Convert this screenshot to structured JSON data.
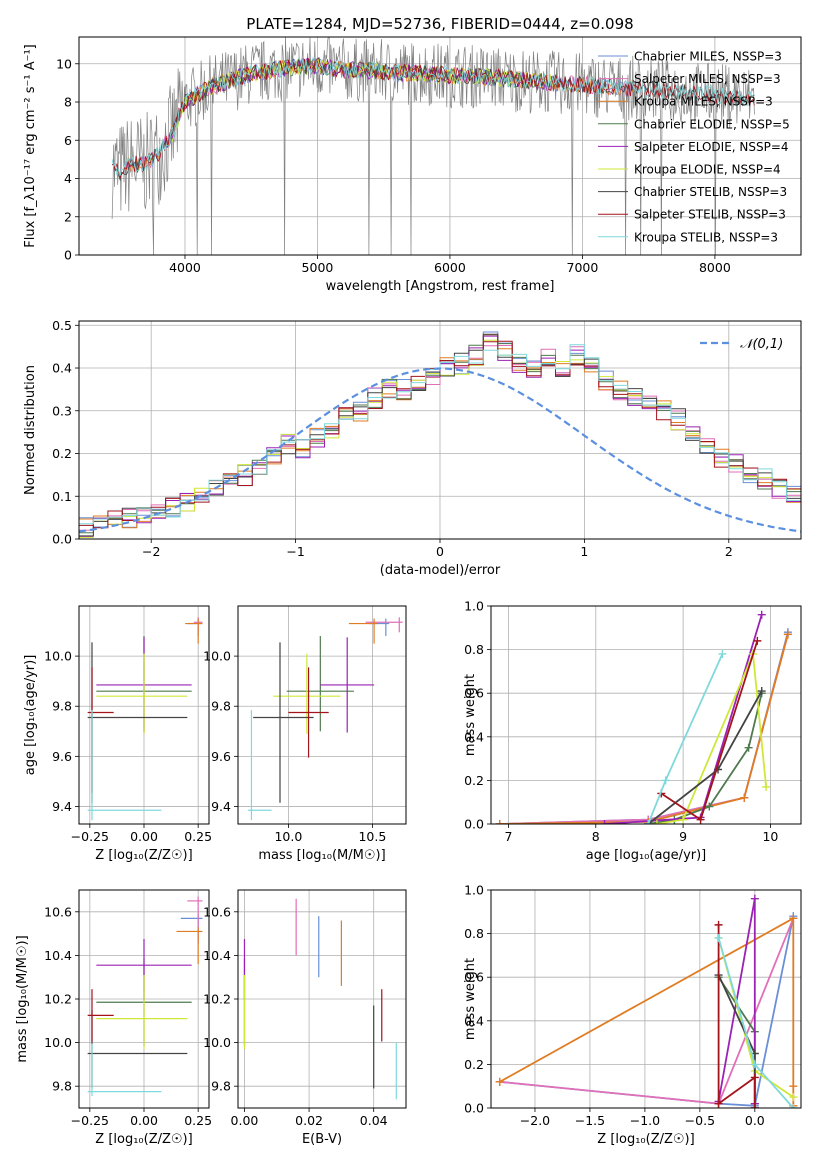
{
  "title": "PLATE=1284, MJD=52736, FIBERID=0444, z=0.098",
  "colors": {
    "Chabrier MILES": "#6a8fd6",
    "Salpeter MILES": "#e26fb8",
    "Kroupa MILES": "#e07c22",
    "Chabrier ELODIE": "#4f7a4f",
    "Salpeter ELODIE": "#9b22b4",
    "Kroupa ELODIE": "#cfe838",
    "Chabrier STELIB": "#444444",
    "Salpeter STELIB": "#a3141c",
    "Kroupa STELIB": "#7fd9dc"
  },
  "chart_data": [
    {
      "type": "line",
      "title": "PLATE=1284, MJD=52736, FIBERID=0444, z=0.098",
      "xlabel": "wavelength [Angstrom, rest frame]",
      "ylabel": "Flux [f_λ10⁻¹⁷ erg cm⁻² s⁻¹ A⁻¹]",
      "xlim": [
        3200,
        8650
      ],
      "ylim": [
        0,
        11.4
      ],
      "xticks": [
        4000,
        5000,
        6000,
        7000,
        8000
      ],
      "yticks": [
        0,
        2,
        4,
        6,
        8,
        10
      ],
      "legend_position": "top-right",
      "data_color": "#808080",
      "series": [
        {
          "name": "Chabrier MILES, N_SSP=3",
          "wave_range": [
            3550,
            7400
          ]
        },
        {
          "name": "Salpeter MILES, N_SSP=3",
          "wave_range": [
            3550,
            7400
          ]
        },
        {
          "name": "Kroupa MILES, N_SSP=3",
          "wave_range": [
            3550,
            7400
          ]
        },
        {
          "name": "Chabrier ELODIE, N_SSP=5",
          "wave_range": [
            3900,
            6800
          ]
        },
        {
          "name": "Salpeter ELODIE, N_SSP=4",
          "wave_range": [
            3900,
            6800
          ]
        },
        {
          "name": "Kroupa ELODIE, N_SSP=4",
          "wave_range": [
            3900,
            6800
          ]
        },
        {
          "name": "Chabrier STELIB, N_SSP=3",
          "wave_range": [
            3450,
            8300
          ]
        },
        {
          "name": "Salpeter STELIB, N_SSP=3",
          "wave_range": [
            3450,
            8300
          ]
        },
        {
          "name": "Kroupa STELIB, N_SSP=3",
          "wave_range": [
            3450,
            8300
          ]
        }
      ],
      "continuum": {
        "x": [
          3450,
          3500,
          3600,
          3700,
          3800,
          3900,
          4000,
          4200,
          4500,
          4800,
          5000,
          5200,
          5500,
          5800,
          6000,
          6300,
          6600,
          7000,
          7400,
          7800,
          8300
        ],
        "y": [
          4.6,
          4.3,
          4.8,
          4.7,
          5.3,
          6.3,
          8.0,
          8.8,
          9.5,
          9.8,
          9.9,
          9.7,
          9.6,
          9.5,
          9.4,
          9.3,
          9.1,
          8.9,
          8.7,
          8.5,
          8.2
        ]
      }
    },
    {
      "type": "line",
      "xlabel": "(data-model)/error",
      "ylabel": "Normed distribution",
      "xlim": [
        -2.5,
        2.5
      ],
      "ylim": [
        0,
        0.51
      ],
      "xticks": [
        -2,
        -1,
        0,
        1,
        2
      ],
      "yticks": [
        0.0,
        0.1,
        0.2,
        0.3,
        0.4,
        0.5
      ],
      "legend": [
        "𝒩(0,1)"
      ],
      "legend_position": "top-right",
      "bin_width": 0.1,
      "histogram_x_start": -2.5,
      "histogram": [
        0.025,
        0.04,
        0.045,
        0.048,
        0.052,
        0.065,
        0.075,
        0.085,
        0.105,
        0.12,
        0.13,
        0.15,
        0.175,
        0.2,
        0.22,
        0.21,
        0.24,
        0.25,
        0.29,
        0.3,
        0.33,
        0.35,
        0.35,
        0.37,
        0.38,
        0.4,
        0.41,
        0.43,
        0.46,
        0.44,
        0.41,
        0.4,
        0.42,
        0.4,
        0.43,
        0.41,
        0.37,
        0.35,
        0.33,
        0.31,
        0.3,
        0.28,
        0.25,
        0.22,
        0.19,
        0.18,
        0.15,
        0.14,
        0.12,
        0.1,
        0.085,
        0.07,
        0.06,
        0.05,
        0.045,
        0.04,
        0.035,
        0.03,
        0.03,
        0.028
      ]
    },
    {
      "type": "scatter",
      "xlabel": "Z [log₁₀(Z/Z☉)]",
      "ylabel": "age  [log₁₀(age/yr)]",
      "xlim": [
        -0.3,
        0.3
      ],
      "ylim": [
        9.33,
        10.2
      ],
      "xticks": [
        -0.25,
        0.0,
        0.25
      ],
      "yticks": [
        9.4,
        9.6,
        9.8,
        10.0
      ],
      "points": [
        {
          "x": 0.25,
          "y": 10.13,
          "xerr": [
            0.05,
            0.02
          ],
          "yerr": [
            0.05,
            0.02
          ]
        },
        {
          "x": 0.25,
          "y": 10.135,
          "xerr": [
            0.02,
            0.02
          ],
          "yerr": [
            0.04,
            0.02
          ]
        },
        {
          "x": 0.25,
          "y": 10.13,
          "xerr": [
            0.06,
            0.02
          ],
          "yerr": [
            0.08,
            0.02
          ]
        },
        {
          "x": 0.0,
          "y": 9.86,
          "xerr": [
            0.22,
            0.22
          ],
          "yerr": [
            0.16,
            0.22
          ]
        },
        {
          "x": 0.0,
          "y": 9.885,
          "xerr": [
            0.22,
            0.22
          ],
          "yerr": [
            0.19,
            0.19
          ]
        },
        {
          "x": 0.0,
          "y": 9.84,
          "xerr": [
            0.22,
            0.2
          ],
          "yerr": [
            0.15,
            0.17
          ]
        },
        {
          "x": -0.24,
          "y": 9.755,
          "xerr": [
            0.02,
            0.44
          ],
          "yerr": [
            0.34,
            0.3
          ]
        },
        {
          "x": -0.24,
          "y": 9.775,
          "xerr": [
            0.02,
            0.1
          ],
          "yerr": [
            0.32,
            0.18
          ]
        },
        {
          "x": -0.24,
          "y": 9.385,
          "xerr": [
            0.02,
            0.32
          ],
          "yerr": [
            0.04,
            0.4
          ]
        }
      ]
    },
    {
      "type": "scatter",
      "xlabel": "mass [log₁₀(M/M☉)]",
      "ylabel": "",
      "xlim": [
        9.7,
        10.7
      ],
      "ylim": [
        9.33,
        10.2
      ],
      "xticks": [
        10.0,
        10.5
      ],
      "yticks": [
        9.4,
        9.6,
        9.8,
        10.0
      ],
      "points": [
        {
          "x": 10.58,
          "y": 10.13,
          "xerr": [
            0.1,
            0.02
          ],
          "yerr": [
            0.05,
            0.02
          ]
        },
        {
          "x": 10.66,
          "y": 10.135,
          "xerr": [
            0.2,
            0.02
          ],
          "yerr": [
            0.04,
            0.02
          ]
        },
        {
          "x": 10.51,
          "y": 10.13,
          "xerr": [
            0.15,
            0.02
          ],
          "yerr": [
            0.08,
            0.02
          ]
        },
        {
          "x": 10.19,
          "y": 9.86,
          "xerr": [
            0.2,
            0.2
          ],
          "yerr": [
            0.16,
            0.22
          ]
        },
        {
          "x": 10.35,
          "y": 9.885,
          "xerr": [
            0.16,
            0.16
          ],
          "yerr": [
            0.19,
            0.19
          ]
        },
        {
          "x": 10.11,
          "y": 9.84,
          "xerr": [
            0.2,
            0.2
          ],
          "yerr": [
            0.15,
            0.17
          ]
        },
        {
          "x": 9.95,
          "y": 9.755,
          "xerr": [
            0.16,
            0.2
          ],
          "yerr": [
            0.34,
            0.3
          ]
        },
        {
          "x": 10.12,
          "y": 9.775,
          "xerr": [
            0.12,
            0.12
          ],
          "yerr": [
            0.18,
            0.18
          ]
        },
        {
          "x": 9.78,
          "y": 9.385,
          "xerr": [
            0.02,
            0.12
          ],
          "yerr": [
            0.04,
            0.4
          ]
        }
      ]
    },
    {
      "type": "line",
      "xlabel": "age  [log₁₀(age/yr)]",
      "ylabel": "mass weight",
      "xlim": [
        6.8,
        10.35
      ],
      "ylim": [
        0,
        1.0
      ],
      "xticks": [
        7,
        8,
        9,
        10
      ],
      "yticks": [
        0.0,
        0.2,
        0.4,
        0.6,
        0.8,
        1.0
      ],
      "series": [
        {
          "name": "Chabrier MILES",
          "x": [
            6.9,
            8.6,
            9.7,
            10.2
          ],
          "y": [
            0.0,
            0.02,
            0.12,
            0.88
          ]
        },
        {
          "name": "Salpeter MILES",
          "x": [
            6.9,
            8.6,
            9.7,
            10.2
          ],
          "y": [
            0.0,
            0.02,
            0.12,
            0.87
          ]
        },
        {
          "name": "Kroupa MILES",
          "x": [
            6.9,
            8.6,
            9.7,
            10.2
          ],
          "y": [
            0.0,
            0.01,
            0.12,
            0.87
          ]
        },
        {
          "name": "Chabrier ELODIE",
          "x": [
            8.6,
            8.9,
            9.3,
            9.75,
            9.9
          ],
          "y": [
            0.0,
            0.02,
            0.08,
            0.35,
            0.6
          ]
        },
        {
          "name": "Salpeter ELODIE",
          "x": [
            8.1,
            9.2,
            9.9
          ],
          "y": [
            0.0,
            0.03,
            0.96
          ]
        },
        {
          "name": "Kroupa ELODIE",
          "x": [
            8.7,
            9.0,
            9.8,
            9.95
          ],
          "y": [
            0.0,
            0.02,
            0.78,
            0.17
          ]
        },
        {
          "name": "Chabrier STELIB",
          "x": [
            8.6,
            9.4,
            9.9
          ],
          "y": [
            0.0,
            0.25,
            0.61
          ]
        },
        {
          "name": "Salpeter STELIB",
          "x": [
            8.75,
            9.2,
            9.85
          ],
          "y": [
            0.14,
            0.02,
            0.84
          ]
        },
        {
          "name": "Kroupa STELIB",
          "x": [
            8.6,
            8.8,
            9.45
          ],
          "y": [
            0.0,
            0.2,
            0.78
          ]
        }
      ]
    },
    {
      "type": "scatter",
      "xlabel": "Z [log₁₀(Z/Z☉)]",
      "ylabel": "mass [log₁₀(M/M☉)]",
      "xlim": [
        -0.3,
        0.3
      ],
      "ylim": [
        9.7,
        10.7
      ],
      "xticks": [
        -0.25,
        0.0,
        0.25
      ],
      "yticks": [
        9.8,
        10.0,
        10.2,
        10.4,
        10.6
      ],
      "points": [
        {
          "x": 0.25,
          "y": 10.57,
          "xerr": [
            0.08,
            0.02
          ],
          "yerr": [
            0.1,
            0.02
          ]
        },
        {
          "x": 0.25,
          "y": 10.65,
          "xerr": [
            0.05,
            0.02
          ],
          "yerr": [
            0.2,
            0.02
          ]
        },
        {
          "x": 0.25,
          "y": 10.51,
          "xerr": [
            0.1,
            0.02
          ],
          "yerr": [
            0.15,
            0.02
          ]
        },
        {
          "x": 0.0,
          "y": 10.185,
          "xerr": [
            0.22,
            0.22
          ],
          "yerr": [
            0.2,
            0.2
          ]
        },
        {
          "x": 0.0,
          "y": 10.355,
          "xerr": [
            0.22,
            0.22
          ],
          "yerr": [
            0.16,
            0.12
          ]
        },
        {
          "x": 0.0,
          "y": 10.11,
          "xerr": [
            0.22,
            0.2
          ],
          "yerr": [
            0.14,
            0.2
          ]
        },
        {
          "x": -0.24,
          "y": 9.95,
          "xerr": [
            0.02,
            0.44
          ],
          "yerr": [
            0.16,
            0.2
          ]
        },
        {
          "x": -0.24,
          "y": 10.125,
          "xerr": [
            0.02,
            0.1
          ],
          "yerr": [
            0.12,
            0.12
          ]
        },
        {
          "x": -0.24,
          "y": 9.775,
          "xerr": [
            0.02,
            0.32
          ],
          "yerr": [
            0.02,
            0.22
          ]
        }
      ]
    },
    {
      "type": "scatter",
      "xlabel": "E(B-V)",
      "ylabel": "",
      "xlim": [
        -0.002,
        0.05
      ],
      "ylim": [
        9.7,
        10.7
      ],
      "xticks": [
        0.0,
        0.02,
        0.04
      ],
      "yticks": [
        9.8,
        10.0,
        10.2,
        10.4,
        10.6
      ],
      "points": [
        {
          "x": 0.023,
          "y": 10.42,
          "yerr": [
            0.12,
            0.16
          ]
        },
        {
          "x": 0.016,
          "y": 10.52,
          "yerr": [
            0.12,
            0.14
          ]
        },
        {
          "x": 0.03,
          "y": 10.4,
          "yerr": [
            0.14,
            0.16
          ]
        },
        {
          "x": 0.0,
          "y": 10.185,
          "yerr": [
            0.2,
            0.2
          ]
        },
        {
          "x": 0.0,
          "y": 10.355,
          "yerr": [
            0.16,
            0.12
          ]
        },
        {
          "x": 0.0,
          "y": 10.11,
          "yerr": [
            0.14,
            0.2
          ]
        },
        {
          "x": 0.04,
          "y": 9.95,
          "yerr": [
            0.16,
            0.22
          ]
        },
        {
          "x": 0.0425,
          "y": 10.125,
          "yerr": [
            0.12,
            0.12
          ]
        },
        {
          "x": 0.047,
          "y": 9.88,
          "yerr": [
            0.14,
            0.12
          ]
        }
      ]
    },
    {
      "type": "line",
      "xlabel": "Z [log₁₀(Z/Z☉)]",
      "ylabel": "mass weight",
      "xlim": [
        -2.4,
        0.42
      ],
      "ylim": [
        0,
        1.0
      ],
      "xticks": [
        -2.0,
        -1.5,
        -1.0,
        -0.5,
        0.0
      ],
      "yticks": [
        0.0,
        0.2,
        0.4,
        0.6,
        0.8,
        1.0
      ],
      "series": [
        {
          "name": "Chabrier MILES",
          "x": [
            -2.32,
            -0.33,
            0.0,
            0.35
          ],
          "y": [
            0.12,
            0.02,
            0.01,
            0.88
          ]
        },
        {
          "name": "Salpeter MILES",
          "x": [
            -2.32,
            -0.33,
            0.35
          ],
          "y": [
            0.12,
            0.02,
            0.87
          ]
        },
        {
          "name": "Kroupa MILES",
          "x": [
            -2.32,
            0.35,
            0.35,
            0.35
          ],
          "y": [
            0.12,
            0.87,
            0.1,
            0.01
          ]
        },
        {
          "name": "Chabrier ELODIE",
          "x": [
            -0.33,
            0.0,
            0.0
          ],
          "y": [
            0.6,
            0.35,
            0.02
          ]
        },
        {
          "name": "Salpeter ELODIE",
          "x": [
            -0.33,
            0.0,
            0.0
          ],
          "y": [
            0.03,
            0.96,
            0.02
          ]
        },
        {
          "name": "Kroupa ELODIE",
          "x": [
            -0.33,
            0.0,
            0.35
          ],
          "y": [
            0.78,
            0.17,
            0.05
          ]
        },
        {
          "name": "Chabrier STELIB",
          "x": [
            -0.33,
            0.0,
            0.0
          ],
          "y": [
            0.61,
            0.25,
            0.0
          ]
        },
        {
          "name": "Salpeter STELIB",
          "x": [
            -0.33,
            -0.33,
            0.0,
            0.0
          ],
          "y": [
            0.84,
            0.02,
            0.14,
            0.0
          ]
        },
        {
          "name": "Kroupa STELIB",
          "x": [
            -0.33,
            0.0,
            0.35
          ],
          "y": [
            0.78,
            0.2,
            0.0
          ]
        }
      ]
    }
  ]
}
